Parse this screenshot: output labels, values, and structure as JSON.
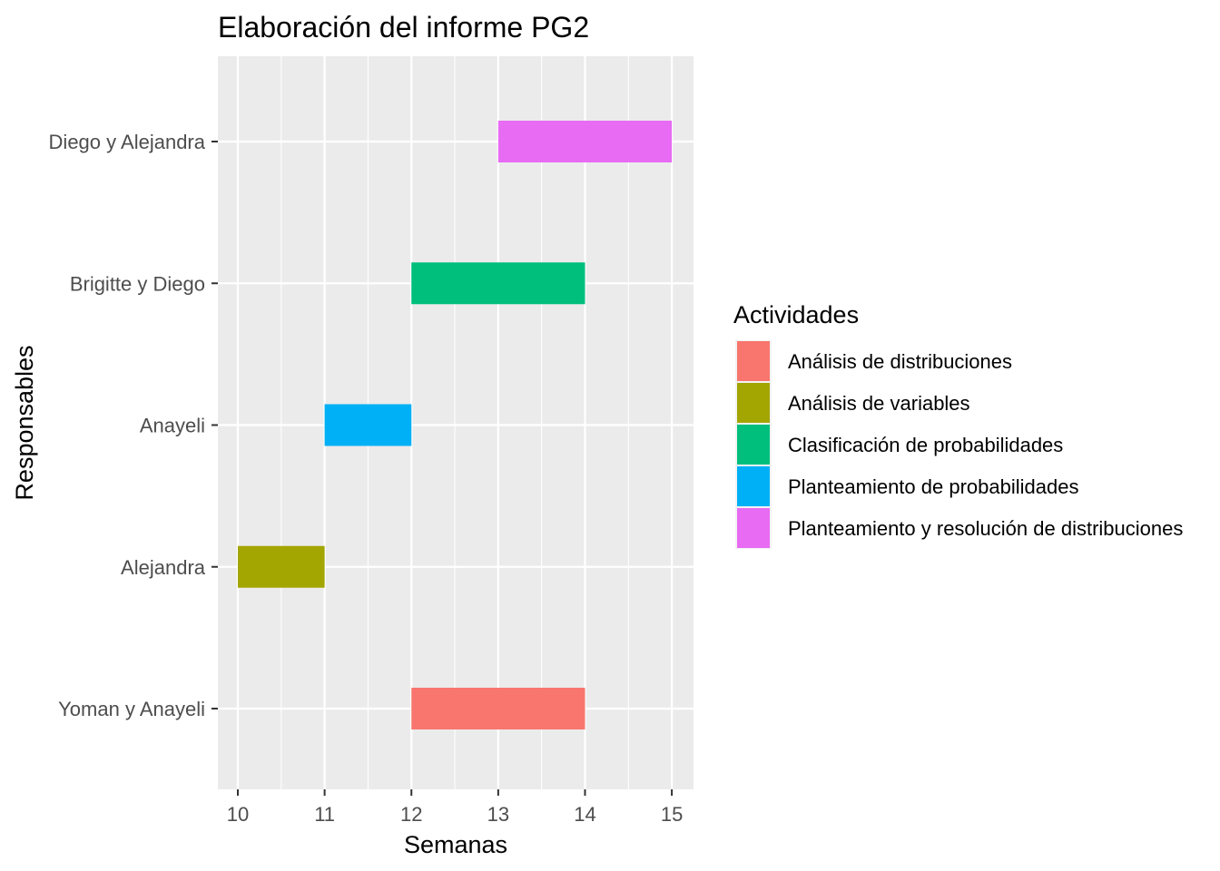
{
  "chart_data": {
    "type": "gantt",
    "title": "Elaboración del informe PG2",
    "xlabel": "Semanas",
    "ylabel": "Responsables",
    "xlim": [
      9.77,
      15.25
    ],
    "x_ticks": [
      10,
      11,
      12,
      13,
      14,
      15
    ],
    "x_tick_labels": [
      "10",
      "11",
      "12",
      "13",
      "14",
      "15"
    ],
    "categories": [
      "Diego y Alejandra",
      "Brigitte y Diego",
      "Anayeli",
      "Alejandra",
      "Yoman y Anayeli"
    ],
    "legend": {
      "title": "Actividades",
      "position": "right",
      "items": [
        {
          "label": "Análisis de distribuciones",
          "color": "#F8766D"
        },
        {
          "label": "Análisis de variables",
          "color": "#A3A500"
        },
        {
          "label": "Clasificación de probabilidades",
          "color": "#00BF7D"
        },
        {
          "label": "Planteamiento de probabilidades",
          "color": "#00B0F6"
        },
        {
          "label": "Planteamiento y resolución de distribuciones",
          "color": "#E76BF3"
        }
      ]
    },
    "bars": [
      {
        "responsable": "Diego y Alejandra",
        "actividad": "Planteamiento y resolución de distribuciones",
        "start": 13,
        "end": 15,
        "color": "#E76BF3"
      },
      {
        "responsable": "Brigitte y Diego",
        "actividad": "Clasificación de probabilidades",
        "start": 12,
        "end": 14,
        "color": "#00BF7D"
      },
      {
        "responsable": "Anayeli",
        "actividad": "Planteamiento de probabilidades",
        "start": 11,
        "end": 12,
        "color": "#00B0F6"
      },
      {
        "responsable": "Alejandra",
        "actividad": "Análisis de variables",
        "start": 10,
        "end": 11,
        "color": "#A3A500"
      },
      {
        "responsable": "Yoman y Anayeli",
        "actividad": "Análisis de distribuciones",
        "start": 12,
        "end": 14,
        "color": "#F8766D"
      }
    ],
    "grid": true,
    "panel_background": "#EBEBEB",
    "grid_color": "#FFFFFF"
  }
}
